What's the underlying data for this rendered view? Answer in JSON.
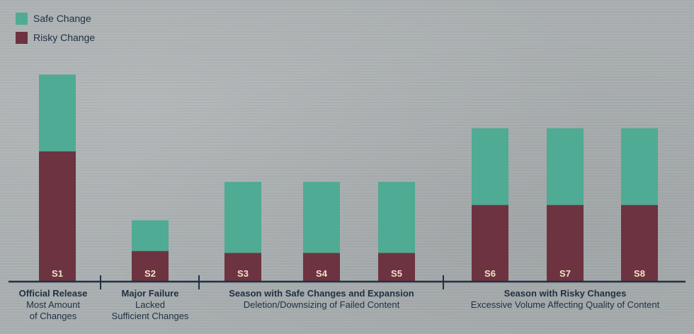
{
  "chart_data": {
    "type": "bar",
    "stacked": true,
    "categories": [
      "S1",
      "S2",
      "S3",
      "S4",
      "S5",
      "S6",
      "S7",
      "S8"
    ],
    "series": [
      {
        "name": "Risky Change",
        "values": [
          68,
          16,
          15,
          15,
          15,
          40,
          40,
          40
        ]
      },
      {
        "name": "Safe Change",
        "values": [
          40,
          16,
          37,
          37,
          37,
          40,
          40,
          40
        ]
      }
    ],
    "ylim": [
      0,
      110
    ],
    "grid": false,
    "legend_position": "top-left",
    "colors": {
      "Safe Change": "#4fab93",
      "Risky Change": "#6d3340",
      "axis": "#1f3144",
      "tick_label": "#f0e3c8"
    }
  },
  "legend": {
    "items": [
      {
        "label": "Safe Change"
      },
      {
        "label": "Risky Change"
      }
    ]
  },
  "groups": [
    {
      "title": "Official Release",
      "subtitle": "Most Amount\nof Changes"
    },
    {
      "title": "Major Failure",
      "subtitle": "Lacked\nSufficient Changes"
    },
    {
      "title": "Season with Safe Changes and Expansion",
      "subtitle": "Deletion/Downsizing of Failed Content"
    },
    {
      "title": "Season with Risky Changes",
      "subtitle": "Excessive Volume Affecting Quality of Content"
    }
  ]
}
